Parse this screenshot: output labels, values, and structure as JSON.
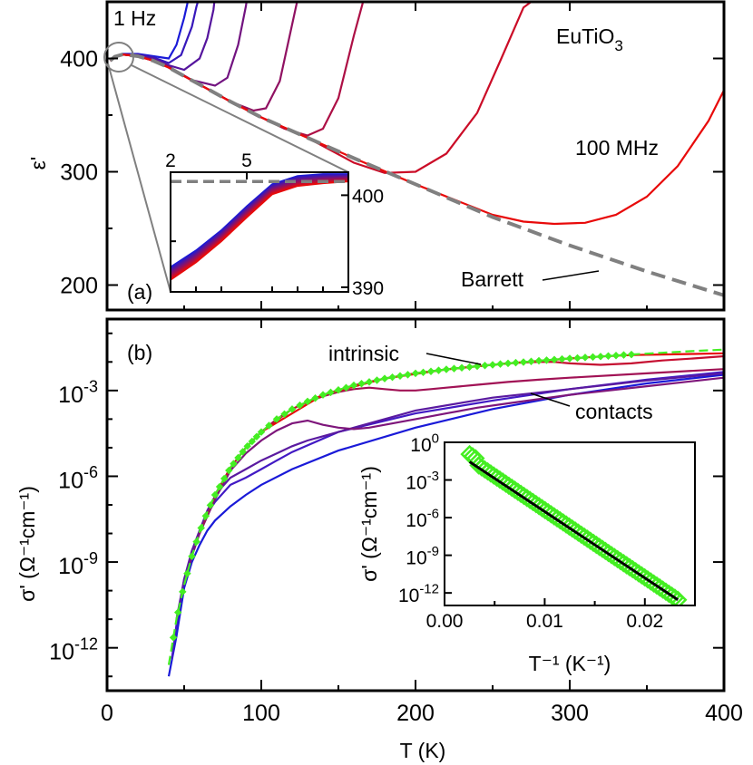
{
  "colors": {
    "low_freq": "#1a1ad8",
    "high_freq": "#e80a0a",
    "barrett": "#808080",
    "fit_marker": "#44ee22",
    "fit_line": "#000000"
  },
  "chart_data": [
    {
      "id": "panel_a",
      "type": "line",
      "panel_label": "(a)",
      "title": "EuTiO3",
      "title_main": "EuTiO",
      "title_sub": "3",
      "ylabel": "ε'",
      "xlim": [
        0,
        400
      ],
      "ylim": [
        178,
        450
      ],
      "xticks": [
        0,
        100,
        200,
        300,
        400
      ],
      "yticks": [
        200,
        300,
        400
      ],
      "ytick_labels": [
        "200",
        "300",
        "400"
      ],
      "annotations": {
        "low": "1 Hz",
        "high": "100 MHz",
        "barrett": "Barrett"
      },
      "barrett_curve": {
        "name": "Barrett",
        "style": "dashed",
        "x": [
          2,
          5,
          10,
          20,
          30,
          40,
          60,
          80,
          100,
          130,
          160,
          200,
          250,
          300,
          350,
          400
        ],
        "y": [
          398,
          401.5,
          403.5,
          402,
          398,
          392,
          377,
          362,
          348,
          330,
          312,
          289,
          260,
          235,
          212,
          191
        ]
      },
      "series": [
        {
          "x": [
            2,
            5,
            10,
            20,
            30,
            40,
            45,
            50,
            52,
            53
          ],
          "y": [
            399,
            402,
            404,
            404,
            402,
            400,
            412,
            436,
            448,
            455
          ]
        },
        {
          "x": [
            2,
            5,
            10,
            20,
            30,
            40,
            48,
            55,
            58,
            60
          ],
          "y": [
            398,
            401.5,
            403.5,
            403.5,
            401,
            396,
            403,
            428,
            446,
            455
          ]
        },
        {
          "x": [
            2,
            5,
            10,
            20,
            30,
            40,
            50,
            60,
            65,
            69,
            70
          ],
          "y": [
            398,
            401.5,
            403.5,
            403,
            400,
            394,
            390,
            400,
            418,
            443,
            455
          ]
        },
        {
          "x": [
            2,
            5,
            10,
            20,
            30,
            40,
            55,
            70,
            78,
            85,
            90,
            91
          ],
          "y": [
            398,
            401.5,
            403.5,
            402.5,
            399,
            393,
            381,
            376,
            383,
            412,
            446,
            455
          ]
        },
        {
          "x": [
            2,
            5,
            10,
            20,
            30,
            40,
            60,
            80,
            95,
            103,
            112,
            120,
            124
          ],
          "y": [
            398,
            401.5,
            403.5,
            402,
            398,
            392,
            377,
            362,
            354,
            356,
            380,
            430,
            455
          ]
        },
        {
          "x": [
            2,
            5,
            10,
            20,
            30,
            40,
            60,
            80,
            100,
            115,
            130,
            140,
            150,
            160,
            167
          ],
          "y": [
            398,
            401.5,
            403.5,
            402,
            398,
            392,
            377,
            362,
            348,
            338,
            332,
            338,
            365,
            420,
            455
          ]
        },
        {
          "x": [
            2,
            5,
            10,
            20,
            30,
            40,
            60,
            80,
            100,
            130,
            160,
            180,
            200,
            220,
            240,
            255,
            270,
            280
          ],
          "y": [
            398,
            401.5,
            403.5,
            402,
            398,
            392,
            377,
            362,
            348,
            330,
            308,
            299,
            300,
            316,
            352,
            398,
            445,
            455
          ]
        },
        {
          "x": [
            2,
            5,
            10,
            20,
            30,
            40,
            60,
            80,
            100,
            130,
            160,
            200,
            250,
            270,
            290,
            310,
            330,
            350,
            370,
            390,
            400
          ],
          "y": [
            398,
            401.5,
            403.5,
            402,
            398,
            392,
            377,
            362,
            348,
            330,
            312,
            289,
            262,
            256,
            254,
            255,
            262,
            278,
            305,
            345,
            372
          ]
        }
      ],
      "inset": {
        "xlim": [
          2,
          9
        ],
        "ylim": [
          389.5,
          402.5
        ],
        "xticks": [
          2,
          5
        ],
        "yticks": [
          390,
          400
        ],
        "ytick_labels": [
          "390",
          "400"
        ],
        "barrett_curve": {
          "x": [
            2,
            3,
            4,
            5,
            6,
            7,
            8,
            9
          ],
          "y": [
            401.5,
            401.5,
            401.5,
            401.5,
            401.5,
            401.5,
            401.5,
            401.5
          ]
        },
        "series": [
          {
            "x": [
              2,
              3,
              4,
              5,
              6,
              7,
              8,
              9
            ],
            "y": [
              392.2,
              394,
              396.2,
              398.8,
              401.2,
              402.1,
              402.3,
              402.3
            ]
          },
          {
            "x": [
              2,
              3,
              4,
              5,
              6,
              7,
              8,
              9
            ],
            "y": [
              391.7,
              393.5,
              395.8,
              398.4,
              400.9,
              401.8,
              402.0,
              402.1
            ]
          },
          {
            "x": [
              2,
              3,
              4,
              5,
              6,
              7,
              8,
              9
            ],
            "y": [
              391.2,
              393.1,
              395.4,
              398.0,
              400.5,
              401.4,
              401.7,
              401.8
            ]
          },
          {
            "x": [
              2,
              3,
              4,
              5,
              6,
              7,
              8,
              9
            ],
            "y": [
              390.8,
              392.7,
              395.0,
              397.6,
              400.1,
              401.0,
              401.3,
              401.5
            ]
          }
        ]
      }
    },
    {
      "id": "panel_b",
      "type": "line",
      "panel_label": "(b)",
      "xlabel": "T (K)",
      "ylabel": "σ' (Ω⁻¹cm⁻¹)",
      "xlim": [
        0,
        400
      ],
      "ylim": [
        -13.5,
        -0.5
      ],
      "log_y": true,
      "xticks": [
        0,
        100,
        200,
        300,
        400
      ],
      "xtick_labels": [
        "0",
        "100",
        "200",
        "300",
        "400"
      ],
      "yticks_log10": [
        -3,
        -6,
        -9,
        -12
      ],
      "ytick_labels": {
        "base": "10",
        "exps": [
          "-3",
          "-6",
          "-9",
          "-12"
        ]
      },
      "annotations": {
        "intrinsic": "intrinsic",
        "contacts": "contacts"
      },
      "intrinsic_fit": {
        "style": "dashed",
        "x": [
          40,
          45,
          50,
          55,
          60,
          65,
          70,
          80,
          90,
          100,
          110,
          120,
          130,
          140,
          150,
          160,
          180,
          200,
          220,
          240,
          260,
          280,
          300,
          320,
          340,
          360,
          380,
          400
        ],
        "log10_y": [
          -12.6,
          -11.0,
          -9.8,
          -8.8,
          -7.95,
          -7.25,
          -6.65,
          -5.7,
          -5.0,
          -4.45,
          -4.0,
          -3.65,
          -3.38,
          -3.15,
          -2.98,
          -2.82,
          -2.58,
          -2.4,
          -2.26,
          -2.15,
          -2.05,
          -1.96,
          -1.88,
          -1.81,
          -1.74,
          -1.68,
          -1.62,
          -1.57
        ]
      },
      "intrinsic_markers": {
        "x": [
          43,
          46,
          49,
          52,
          55,
          58,
          61,
          64,
          67,
          70,
          73,
          76,
          79,
          82,
          85,
          88,
          91,
          94,
          97,
          100,
          105,
          110,
          115,
          120,
          125,
          130,
          135,
          140,
          145,
          150,
          155,
          160,
          165,
          170,
          175,
          180,
          185,
          190,
          195,
          200,
          205,
          210,
          215,
          220,
          225,
          230,
          235,
          240,
          245,
          250,
          255,
          260,
          265,
          270,
          275,
          280,
          285,
          290,
          295,
          300,
          305,
          310,
          315,
          320,
          325,
          330,
          335,
          340
        ]
      },
      "series": [
        {
          "x": [
            40,
            45,
            50,
            55,
            60,
            65,
            70,
            80,
            90,
            100,
            120,
            150,
            200,
            250,
            300,
            350,
            400
          ],
          "log10_y": [
            -13.0,
            -11.6,
            -9.9,
            -9.0,
            -8.4,
            -7.9,
            -7.55,
            -7.05,
            -6.65,
            -6.3,
            -5.75,
            -5.1,
            -4.3,
            -3.65,
            -3.15,
            -2.75,
            -2.45
          ]
        },
        {
          "x": [
            42,
            45,
            50,
            55,
            60,
            65,
            70,
            80,
            90,
            100,
            110,
            120,
            150,
            200,
            250,
            300,
            350,
            400
          ],
          "log10_y": [
            -12.4,
            -11.2,
            -9.6,
            -8.7,
            -7.9,
            -7.3,
            -6.9,
            -6.3,
            -6.05,
            -5.75,
            -5.45,
            -5.15,
            -4.45,
            -3.8,
            -3.35,
            -2.95,
            -2.62,
            -2.35
          ]
        },
        {
          "x": [
            45,
            50,
            55,
            60,
            65,
            70,
            75,
            80,
            90,
            100,
            110,
            120,
            130,
            140,
            150,
            160,
            200,
            250,
            300,
            350,
            400
          ],
          "log10_y": [
            -11.0,
            -9.6,
            -8.6,
            -7.9,
            -7.2,
            -6.7,
            -6.35,
            -6.05,
            -5.75,
            -5.45,
            -5.2,
            -4.95,
            -4.75,
            -4.6,
            -4.45,
            -4.3,
            -3.7,
            -3.25,
            -2.95,
            -2.65,
            -2.4
          ]
        },
        {
          "x": [
            50,
            55,
            60,
            70,
            80,
            90,
            100,
            110,
            120,
            130,
            140,
            150,
            160,
            170,
            180,
            200,
            220,
            240,
            260,
            300,
            350,
            400
          ],
          "log10_y": [
            -9.8,
            -8.8,
            -8.0,
            -6.8,
            -5.8,
            -5.2,
            -4.75,
            -4.4,
            -4.15,
            -4.05,
            -4.2,
            -4.3,
            -4.35,
            -4.3,
            -4.2,
            -4.0,
            -3.8,
            -3.6,
            -3.45,
            -3.15,
            -2.85,
            -2.55
          ]
        },
        {
          "x": [
            60,
            70,
            80,
            90,
            100,
            110,
            120,
            130,
            140,
            150,
            160,
            170,
            180,
            190,
            200,
            210,
            220,
            240,
            260,
            280,
            300,
            350,
            400
          ],
          "log10_y": [
            -8.0,
            -6.7,
            -5.7,
            -5.0,
            -4.45,
            -4.0,
            -3.65,
            -3.4,
            -3.2,
            -3.05,
            -2.95,
            -2.9,
            -2.95,
            -3.0,
            -3.0,
            -2.95,
            -2.9,
            -2.8,
            -2.7,
            -2.62,
            -2.55,
            -2.4,
            -2.25
          ]
        },
        {
          "x": [
            70,
            80,
            90,
            100,
            120,
            140,
            160,
            180,
            200,
            220,
            240,
            260,
            270,
            280,
            290,
            300,
            320,
            340,
            360,
            380,
            400
          ],
          "log10_y": [
            -6.65,
            -5.7,
            -5.0,
            -4.45,
            -3.65,
            -3.15,
            -2.82,
            -2.58,
            -2.4,
            -2.26,
            -2.15,
            -2.05,
            -2.02,
            -2.0,
            -2.0,
            -2.05,
            -2.1,
            -2.05,
            -1.95,
            -1.88,
            -1.8
          ]
        },
        {
          "x": [
            100,
            140,
            180,
            220,
            260,
            300,
            320,
            340,
            360,
            380,
            400
          ],
          "log10_y": [
            -4.45,
            -3.15,
            -2.58,
            -2.26,
            -2.05,
            -1.88,
            -1.81,
            -1.76,
            -1.74,
            -1.72,
            -1.7
          ]
        }
      ],
      "inset": {
        "xlabel": "T⁻¹ (K⁻¹)",
        "ylabel": "σ' (Ω⁻¹cm⁻¹)",
        "xlim": [
          0,
          0.025
        ],
        "ylim_log10": [
          -13,
          0
        ],
        "xticks": [
          0,
          0.01,
          0.02
        ],
        "xtick_labels": [
          "0.00",
          "0.01",
          "0.02"
        ],
        "yticks_log10": [
          0,
          -3,
          -6,
          -9,
          -12
        ],
        "ytick_labels": {
          "base": "10",
          "exps": [
            "0",
            "-3",
            "-6",
            "-9",
            "-12"
          ]
        },
        "fit_line": {
          "x": [
            0.0025,
            0.0233
          ],
          "log10_y": [
            -1.55,
            -12.55
          ]
        },
        "markers": {
          "x_start": 0.0025,
          "x_end": 0.0233,
          "log10_y_start": -1.35,
          "log10_y_end": -12.55,
          "count": 70
        }
      }
    }
  ]
}
